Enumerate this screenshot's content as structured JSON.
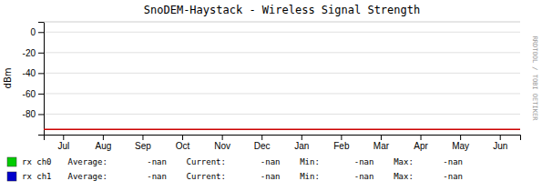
{
  "chart_data": {
    "type": "line",
    "title": "SnoDEM-Haystack - Wireless Signal Strength",
    "y_label": "dBm",
    "categories": [
      "Jul",
      "Aug",
      "Sep",
      "Oct",
      "Nov",
      "Dec",
      "Jan",
      "Feb",
      "Mar",
      "Apr",
      "May",
      "Jun"
    ],
    "series": [
      {
        "name": "rx ch0",
        "color": "#00cc00",
        "stats": "Average:        -nan    Current:       -nan    Min:       -nan    Max:      -nan",
        "values": [
          null,
          null,
          null,
          null,
          null,
          null,
          null,
          null,
          null,
          null,
          null,
          null
        ]
      },
      {
        "name": "rx ch1",
        "color": "#0000cc",
        "stats": "Average:        -nan    Current:       -nan    Min:       -nan    Max:      -nan",
        "values": [
          null,
          null,
          null,
          null,
          null,
          null,
          null,
          null,
          null,
          null,
          null,
          null
        ]
      }
    ],
    "hlines": [
      {
        "value": -95,
        "color": "#cc0000"
      }
    ],
    "annotations": [
      "RRDTOOL / TOBI OETIKER"
    ],
    "ylim": [
      -100,
      10
    ],
    "yticks": [
      0,
      -20,
      -40,
      -60,
      -80
    ],
    "grid": true
  }
}
